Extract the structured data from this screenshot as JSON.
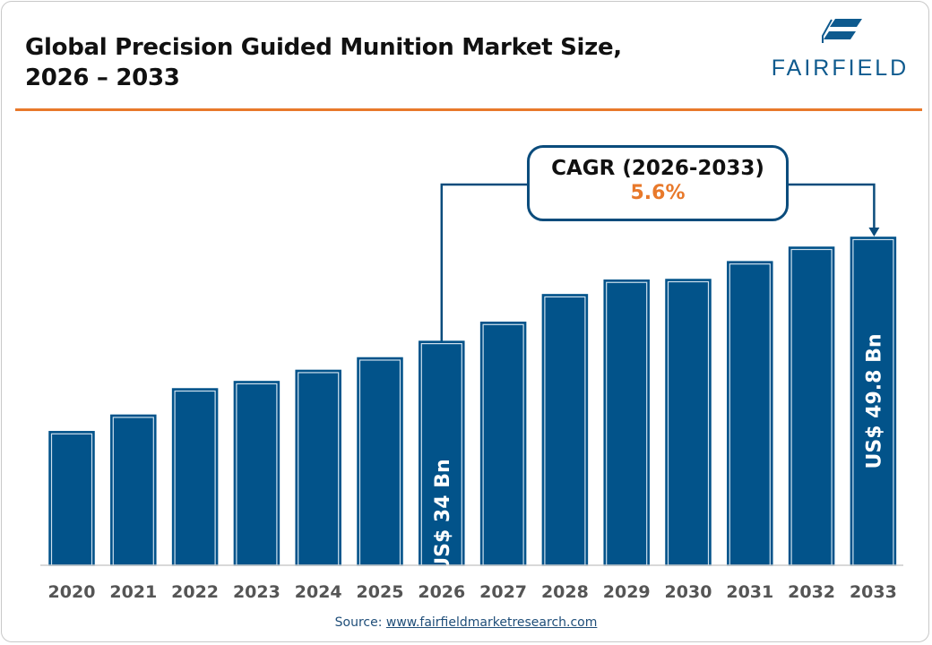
{
  "header": {
    "title_line1": "Global Precision Guided Munition Market Size,",
    "title_line2": "2026 – 2033",
    "logo_text": "FAIRFIELD"
  },
  "callout": {
    "label": "CAGR (2026-2033)",
    "value": "5.6%"
  },
  "source": {
    "prefix": "Source: ",
    "link": "www.fairfieldmarketresearch.com"
  },
  "colors": {
    "bar": "#02538a",
    "accent": "#e8792b",
    "title": "#111111"
  },
  "chart_data": {
    "type": "bar",
    "title": "Global Precision Guided Munition Market Size, 2026 – 2033",
    "categories": [
      "2020",
      "2021",
      "2022",
      "2023",
      "2024",
      "2025",
      "2026",
      "2027",
      "2028",
      "2029",
      "2030",
      "2031",
      "2032",
      "2033"
    ],
    "values": [
      20.3,
      22.8,
      26.8,
      27.9,
      29.6,
      31.5,
      34.0,
      36.9,
      41.1,
      43.3,
      43.4,
      46.1,
      48.3,
      49.8
    ],
    "unit": "US$ Bn",
    "data_labels": {
      "2026": "US$ 34 Bn",
      "2033": "US$ 49.8 Bn"
    },
    "grid": false,
    "y_axis_shown": false
  }
}
